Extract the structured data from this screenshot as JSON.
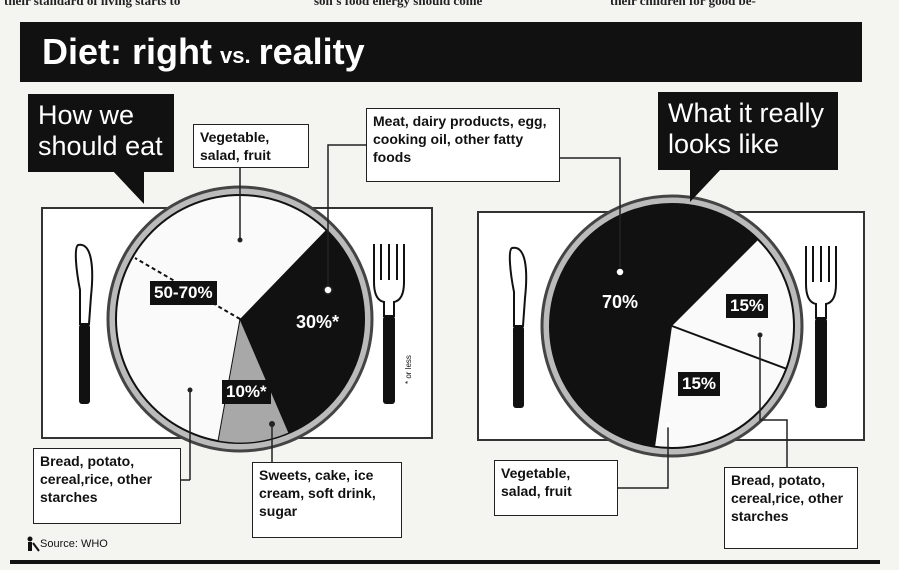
{
  "header_text": {
    "col1": "their standard of living starts to",
    "col2": "son's food energy should come",
    "col3": "their children for good be-"
  },
  "title": {
    "main": "Diet: right",
    "vs": "vs.",
    "end": "reality"
  },
  "callouts": {
    "left": "How we should eat",
    "right": "What it really looks like"
  },
  "labels": {
    "veg_left": "Vegetable, salad, fruit",
    "meat": "Meat, dairy products, egg, cooking oil, other fatty foods",
    "bread_left": "Bread, potato, cereal,rice, other starches",
    "sweets": "Sweets, cake, ice cream, soft drink, sugar",
    "veg_right": "Vegetable, salad, fruit",
    "bread_right": "Bread, potato, cereal,rice, other starches"
  },
  "footnote": "* or less",
  "source": "Source: WHO",
  "colors": {
    "fatty": "#111111",
    "sweets": "#a8a8a8",
    "starch_veg": "#fafafa",
    "banner": "#111111"
  },
  "chart_data": [
    {
      "type": "pie",
      "title": "How we should eat",
      "slices": [
        {
          "label": "Bread, potato, cereal,rice, other starches / Vegetable, salad, fruit",
          "value_label": "50-70%",
          "value": 60
        },
        {
          "label": "Meat, dairy products, egg, cooking oil, other fatty foods",
          "value_label": "30%*",
          "value": 30
        },
        {
          "label": "Sweets, cake, ice cream, soft drink, sugar",
          "value_label": "10%*",
          "value": 10
        }
      ]
    },
    {
      "type": "pie",
      "title": "What it really looks like",
      "slices": [
        {
          "label": "Meat, dairy products, egg, cooking oil, other fatty foods",
          "value_label": "70%",
          "value": 70
        },
        {
          "label": "Bread, potato, cereal,rice, other starches",
          "value_label": "15%",
          "value": 15
        },
        {
          "label": "Vegetable, salad, fruit",
          "value_label": "15%",
          "value": 15
        }
      ]
    }
  ]
}
